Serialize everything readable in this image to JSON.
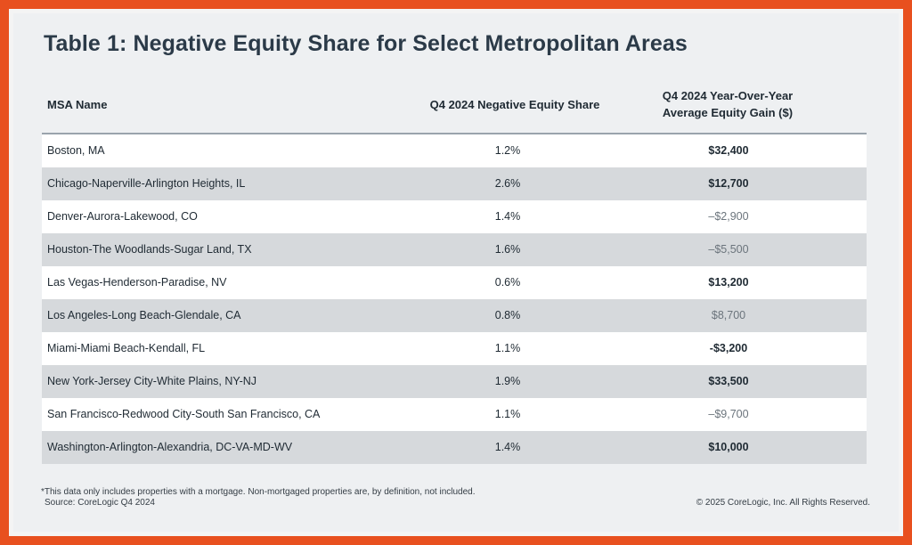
{
  "title": "Table 1: Negative Equity Share for Select Metropolitan Areas",
  "table": {
    "headers": {
      "name": "MSA Name",
      "share": "Q4 2024  Negative Equity Share",
      "gain_line1": "Q4 2024 Year-Over-Year",
      "gain_line2": "Average Equity Gain ($)"
    },
    "rows": [
      {
        "name": "Boston, MA",
        "share": "1.2%",
        "gain": "$32,400",
        "gain_style": "strong"
      },
      {
        "name": "Chicago-Naperville-Arlington Heights, IL",
        "share": "2.6%",
        "gain": "$12,700",
        "gain_style": "strong"
      },
      {
        "name": "Denver-Aurora-Lakewood, CO",
        "share": "1.4%",
        "gain": "–$2,900",
        "gain_style": "muted"
      },
      {
        "name": "Houston-The Woodlands-Sugar Land, TX",
        "share": "1.6%",
        "gain": "–$5,500",
        "gain_style": "muted"
      },
      {
        "name": "Las Vegas-Henderson-Paradise, NV",
        "share": "0.6%",
        "gain": "$13,200",
        "gain_style": "strong"
      },
      {
        "name": "Los Angeles-Long Beach-Glendale, CA",
        "share": "0.8%",
        "gain": "$8,700",
        "gain_style": "muted"
      },
      {
        "name": "Miami-Miami Beach-Kendall, FL",
        "share": "1.1%",
        "gain": "-$3,200",
        "gain_style": "strong"
      },
      {
        "name": "New York-Jersey City-White Plains, NY-NJ",
        "share": "1.9%",
        "gain": "$33,500",
        "gain_style": "strong"
      },
      {
        "name": "San Francisco-Redwood City-South San Francisco, CA",
        "share": "1.1%",
        "gain": "–$9,700",
        "gain_style": "muted"
      },
      {
        "name": "Washington-Arlington-Alexandria, DC-VA-MD-WV",
        "share": "1.4%",
        "gain": "$10,000",
        "gain_style": "strong"
      }
    ]
  },
  "footnote": "*This data only includes properties with a mortgage. Non-mortgaged properties are, by definition, not included.",
  "source": "Source: CoreLogic Q4 2024",
  "copyright": "© 2025 CoreLogic, Inc. All Rights Reserved.",
  "colors": {
    "frame_border": "#e8501f",
    "title": "#2b3a48",
    "row_alt": "#d6d9dc",
    "muted_value": "#6b747c"
  }
}
